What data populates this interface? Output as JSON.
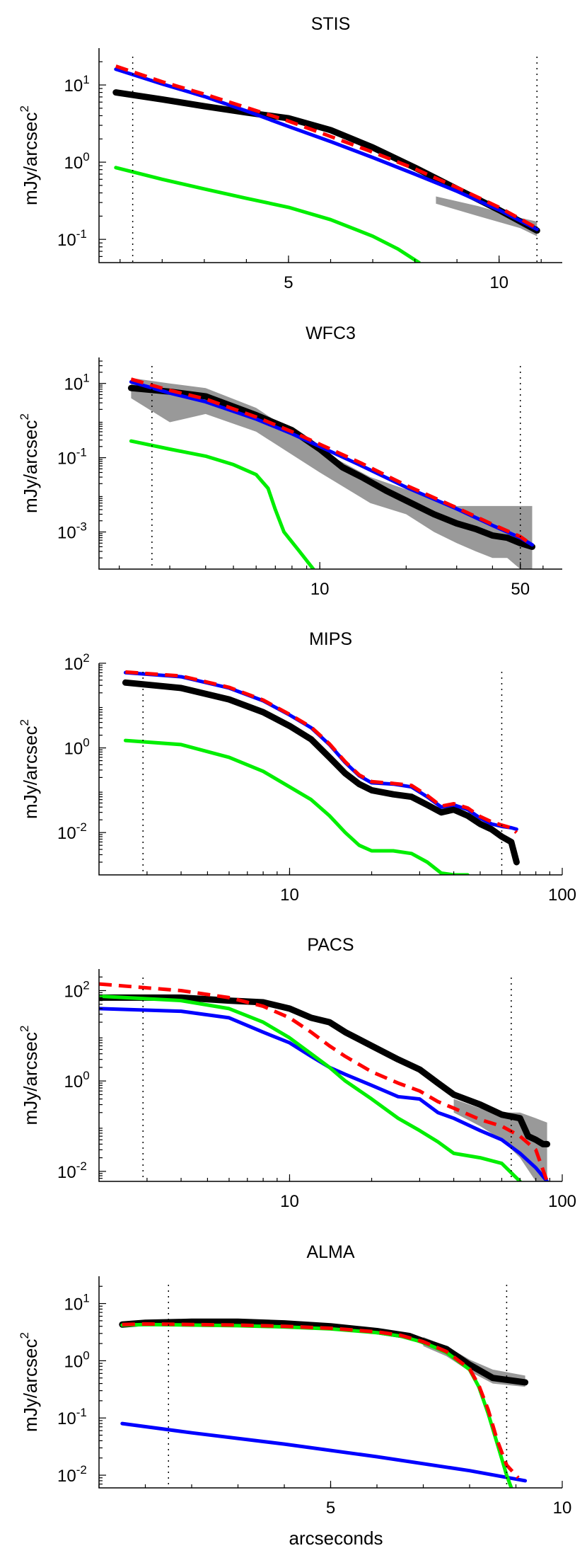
{
  "figure": {
    "xlabel": "arcseconds"
  },
  "chart_data": [
    {
      "type": "line",
      "title": "STIS",
      "xscale": "linear",
      "yscale": "log",
      "ylabel": "mJy/arcsec",
      "ylabel_sup": "2",
      "xlim": [
        0.5,
        11.5
      ],
      "ylim": [
        0.05,
        30
      ],
      "xticks": [
        5,
        10
      ],
      "xtick_labels": [
        "5",
        "10"
      ],
      "yticks": [
        0.1,
        1,
        10
      ],
      "ytick_labels": [
        "10",
        "10",
        "10"
      ],
      "ytick_sups": [
        "-1",
        "0",
        "1"
      ],
      "vlines": [
        1.3,
        10.9
      ],
      "series": [
        {
          "color": "#999999",
          "style": "band",
          "x": [
            8.5,
            9.5,
            10.5,
            10.9
          ],
          "y_low": [
            0.29,
            0.2,
            0.14,
            0.11
          ],
          "y_high": [
            0.36,
            0.27,
            0.19,
            0.17
          ]
        },
        {
          "color": "#000000",
          "style": "thick",
          "x": [
            0.9,
            2,
            3,
            4,
            5,
            6,
            7,
            8,
            9,
            10,
            10.9
          ],
          "y": [
            8,
            6.5,
            5.3,
            4.4,
            3.7,
            2.6,
            1.55,
            0.85,
            0.45,
            0.24,
            0.13
          ]
        },
        {
          "color": "#0000ff",
          "style": "solid",
          "x": [
            0.9,
            2,
            3,
            4,
            5,
            6,
            7,
            8,
            9,
            10,
            10.9
          ],
          "y": [
            16,
            10.3,
            7.1,
            4.6,
            2.9,
            1.85,
            1.15,
            0.7,
            0.42,
            0.24,
            0.135
          ]
        },
        {
          "color": "#ff0000",
          "style": "dashed",
          "x": [
            0.9,
            2,
            3,
            4,
            5,
            6,
            7,
            8,
            9,
            10,
            10.9
          ],
          "y": [
            17.5,
            11,
            7.6,
            5.1,
            3.4,
            2.15,
            1.35,
            0.82,
            0.47,
            0.26,
            0.14
          ]
        },
        {
          "color": "#00ee00",
          "style": "solid",
          "x": [
            0.9,
            2,
            3,
            4,
            5,
            6,
            7,
            7.6,
            8.1
          ],
          "y": [
            0.85,
            0.6,
            0.45,
            0.34,
            0.26,
            0.18,
            0.11,
            0.075,
            0.05
          ]
        }
      ]
    },
    {
      "type": "line",
      "title": "WFC3",
      "xscale": "log",
      "yscale": "log",
      "ylabel": "mJy/arcsec",
      "ylabel_sup": "2",
      "xlim": [
        1.7,
        70
      ],
      "ylim": [
        0.0001,
        50
      ],
      "xticks": [
        10,
        50
      ],
      "xtick_labels": [
        "10",
        "50"
      ],
      "yticks": [
        0.001,
        0.1,
        10
      ],
      "ytick_labels": [
        "10",
        "10",
        "10"
      ],
      "ytick_sups": [
        "-3",
        "-1",
        "1"
      ],
      "vlines": [
        2.6,
        50
      ],
      "series": [
        {
          "color": "#999999",
          "style": "band",
          "x": [
            2.2,
            3,
            4,
            6,
            10,
            15,
            20,
            25,
            30,
            35,
            40,
            45,
            50,
            55
          ],
          "y_low": [
            4,
            0.9,
            1.5,
            0.5,
            0.04,
            0.006,
            0.003,
            0.001,
            0.0005,
            0.0003,
            0.0002,
            0.0002,
            0.0001,
            0.0001
          ],
          "y_high": [
            14,
            10,
            7.5,
            2.2,
            0.16,
            0.03,
            0.014,
            0.008,
            0.005,
            0.005,
            0.005,
            0.005,
            0.005,
            0.005
          ]
        },
        {
          "color": "#000000",
          "style": "thick",
          "x": [
            2.2,
            3,
            4,
            6,
            8,
            10,
            12,
            14,
            17,
            20,
            25,
            30,
            35,
            40,
            45,
            50,
            55
          ],
          "y": [
            7.5,
            6,
            4.5,
            1.4,
            0.55,
            0.17,
            0.055,
            0.03,
            0.013,
            0.007,
            0.003,
            0.0017,
            0.0012,
            0.0008,
            0.0007,
            0.0005,
            0.0004
          ]
        },
        {
          "color": "#0000ff",
          "style": "solid",
          "x": [
            2.2,
            3,
            4,
            6,
            8,
            10,
            14,
            20,
            30,
            40,
            50,
            55
          ],
          "y": [
            11,
            5.5,
            3.2,
            1.1,
            0.44,
            0.2,
            0.06,
            0.016,
            0.0042,
            0.0015,
            0.0007,
            0.00045
          ]
        },
        {
          "color": "#ff0000",
          "style": "dashed",
          "x": [
            2.2,
            3,
            4,
            6,
            8,
            10,
            14,
            20,
            30,
            40,
            50,
            55
          ],
          "y": [
            13,
            6.5,
            3.8,
            1.25,
            0.5,
            0.23,
            0.07,
            0.018,
            0.0045,
            0.0016,
            0.00075,
            0.00045
          ]
        },
        {
          "color": "#00ee00",
          "style": "solid",
          "x": [
            2.2,
            3,
            4,
            5,
            6,
            6.6,
            7,
            7.5,
            8.5,
            9.5
          ],
          "y": [
            0.28,
            0.17,
            0.11,
            0.065,
            0.035,
            0.015,
            0.004,
            0.001,
            0.0003,
            0.0001
          ]
        }
      ]
    },
    {
      "type": "line",
      "title": "MIPS",
      "xscale": "log",
      "yscale": "log",
      "ylabel": "mJy/arcsec",
      "ylabel_sup": "2",
      "xlim": [
        2,
        100
      ],
      "ylim": [
        0.001,
        100
      ],
      "xticks": [
        10,
        100
      ],
      "xtick_labels": [
        "10",
        "100"
      ],
      "yticks": [
        0.01,
        1,
        100
      ],
      "ytick_labels": [
        "10",
        "10",
        "10"
      ],
      "ytick_sups": [
        "-2",
        "0",
        "2"
      ],
      "vlines": [
        2.9,
        60
      ],
      "series": [
        {
          "color": "#000000",
          "style": "thick",
          "x": [
            2.5,
            4,
            6,
            8,
            10,
            12,
            14,
            16,
            18,
            20,
            24,
            28,
            32,
            36,
            40,
            45,
            50,
            55,
            60,
            65,
            68
          ],
          "y": [
            35,
            26,
            14,
            7,
            3.3,
            1.6,
            0.6,
            0.25,
            0.14,
            0.1,
            0.08,
            0.07,
            0.045,
            0.03,
            0.035,
            0.025,
            0.016,
            0.012,
            0.008,
            0.006,
            0.002
          ]
        },
        {
          "color": "#0000ff",
          "style": "solid",
          "x": [
            2.5,
            4,
            6,
            8,
            10,
            12,
            14,
            16,
            18,
            20,
            24,
            28,
            32,
            36,
            40,
            45,
            50,
            55,
            60,
            65,
            68
          ],
          "y": [
            60,
            48,
            26,
            13,
            6,
            3,
            1.2,
            0.45,
            0.22,
            0.15,
            0.14,
            0.12,
            0.07,
            0.04,
            0.045,
            0.035,
            0.022,
            0.016,
            0.014,
            0.013,
            0.012
          ]
        },
        {
          "color": "#ff0000",
          "style": "dashed",
          "x": [
            2.5,
            4,
            6,
            8,
            10,
            12,
            14,
            16,
            18,
            20,
            24,
            28,
            32,
            36,
            40,
            45,
            50,
            55,
            60,
            65,
            68
          ],
          "y": [
            62,
            50,
            27,
            13.5,
            6.2,
            3.1,
            1.25,
            0.47,
            0.23,
            0.16,
            0.145,
            0.13,
            0.075,
            0.042,
            0.048,
            0.038,
            0.024,
            0.018,
            0.015,
            0.013,
            0.01
          ]
        },
        {
          "color": "#00ee00",
          "style": "solid",
          "x": [
            2.5,
            4,
            6,
            8,
            10,
            12,
            14,
            16,
            18,
            20,
            24,
            28,
            32,
            36,
            40,
            45
          ],
          "y": [
            1.5,
            1.2,
            0.6,
            0.28,
            0.12,
            0.06,
            0.025,
            0.01,
            0.005,
            0.0037,
            0.0037,
            0.0032,
            0.002,
            0.0011,
            0.001,
            0.001
          ]
        }
      ]
    },
    {
      "type": "line",
      "title": "PACS",
      "xscale": "log",
      "yscale": "log",
      "ylabel": "mJy/arcsec",
      "ylabel_sup": "2",
      "xlim": [
        2,
        100
      ],
      "ylim": [
        0.006,
        300
      ],
      "xticks": [
        10,
        100
      ],
      "xtick_labels": [
        "10",
        "100"
      ],
      "yticks": [
        0.01,
        1,
        100
      ],
      "ytick_labels": [
        "10",
        "10",
        "10"
      ],
      "ytick_sups": [
        "-2",
        "0",
        "2"
      ],
      "vlines": [
        2.9,
        65
      ],
      "series": [
        {
          "color": "#999999",
          "style": "band",
          "x": [
            40,
            50,
            60,
            70,
            80,
            88
          ],
          "y_low": [
            0.2,
            0.1,
            0.05,
            0.02,
            0.006,
            0.006
          ],
          "y_high": [
            0.4,
            0.25,
            0.2,
            0.2,
            0.15,
            0.12
          ]
        },
        {
          "color": "#000000",
          "style": "thick",
          "x": [
            2,
            4,
            6,
            8,
            10,
            12,
            14,
            16,
            20,
            25,
            30,
            35,
            40,
            50,
            60,
            70,
            75,
            80,
            85,
            88
          ],
          "y": [
            70,
            70,
            60,
            55,
            40,
            25,
            20,
            12,
            6,
            3,
            1.8,
            0.9,
            0.5,
            0.3,
            0.18,
            0.15,
            0.06,
            0.05,
            0.04,
            0.04
          ]
        },
        {
          "color": "#0000ff",
          "style": "solid",
          "x": [
            2,
            4,
            6,
            8,
            10,
            12,
            14,
            16,
            20,
            25,
            30,
            35,
            40,
            50,
            60,
            70,
            80,
            88
          ],
          "y": [
            40,
            35,
            25,
            12,
            7,
            3.5,
            2,
            1.4,
            0.8,
            0.45,
            0.4,
            0.2,
            0.15,
            0.08,
            0.05,
            0.025,
            0.012,
            0.006
          ]
        },
        {
          "color": "#ff0000",
          "style": "dashed",
          "x": [
            2,
            4,
            6,
            8,
            10,
            12,
            14,
            16,
            20,
            25,
            30,
            35,
            40,
            50,
            60,
            70,
            80,
            88
          ],
          "y": [
            140,
            100,
            70,
            45,
            25,
            12,
            6,
            3.5,
            1.6,
            0.9,
            0.6,
            0.35,
            0.25,
            0.14,
            0.1,
            0.06,
            0.03,
            0.006
          ]
        },
        {
          "color": "#00ee00",
          "style": "solid",
          "x": [
            2,
            4,
            6,
            8,
            10,
            12,
            14,
            16,
            20,
            25,
            30,
            35,
            40,
            50,
            60,
            70
          ],
          "y": [
            75,
            60,
            40,
            20,
            9,
            4,
            2,
            1,
            0.4,
            0.15,
            0.08,
            0.045,
            0.025,
            0.02,
            0.015,
            0.006
          ]
        }
      ]
    },
    {
      "type": "line",
      "title": "ALMA",
      "xscale": "linear",
      "yscale": "log",
      "ylabel": "mJy/arcsec",
      "ylabel_sup": "2",
      "xlabel": "arcseconds",
      "xlim": [
        0,
        10
      ],
      "ylim": [
        0.006,
        30
      ],
      "xticks": [
        5,
        10
      ],
      "xtick_labels": [
        "5",
        "10"
      ],
      "yticks": [
        0.01,
        0.1,
        1,
        10
      ],
      "ytick_labels": [
        "10",
        "10",
        "10",
        "10"
      ],
      "ytick_sups": [
        "-2",
        "-1",
        "0",
        "1"
      ],
      "vlines": [
        1.5,
        8.8
      ],
      "series": [
        {
          "color": "#999999",
          "style": "band",
          "x": [
            7,
            7.5,
            8,
            8.5,
            9.2
          ],
          "y_low": [
            1.8,
            1.2,
            0.65,
            0.4,
            0.35
          ],
          "y_high": [
            2.6,
            1.8,
            1.05,
            0.7,
            0.55
          ]
        },
        {
          "color": "#000000",
          "style": "thick",
          "x": [
            0.5,
            1,
            2,
            3,
            4,
            5,
            6,
            6.7,
            7,
            7.5,
            8,
            8.5,
            9.2
          ],
          "y": [
            4.3,
            4.6,
            4.8,
            4.8,
            4.5,
            4,
            3.3,
            2.7,
            2.2,
            1.6,
            0.85,
            0.5,
            0.42
          ]
        },
        {
          "color": "#0000ff",
          "style": "solid",
          "x": [
            0.5,
            2,
            4,
            6,
            8,
            9.2
          ],
          "y": [
            0.08,
            0.055,
            0.035,
            0.021,
            0.012,
            0.008
          ]
        },
        {
          "color": "#00ee00",
          "style": "solid",
          "x": [
            0.5,
            1,
            2,
            3,
            4,
            5,
            6,
            6.5,
            7,
            7.5,
            8,
            8.2,
            8.4,
            8.6,
            8.8,
            8.9
          ],
          "y": [
            4.2,
            4.3,
            4.2,
            4.1,
            3.9,
            3.6,
            3.1,
            2.7,
            2.1,
            1.4,
            0.7,
            0.35,
            0.12,
            0.035,
            0.01,
            0.006
          ]
        },
        {
          "color": "#ff0000",
          "style": "dashed",
          "x": [
            0.5,
            1,
            2,
            3,
            4,
            5,
            6,
            6.5,
            7,
            7.5,
            8,
            8.2,
            8.4,
            8.6,
            8.8,
            9.05
          ],
          "y": [
            4.3,
            4.4,
            4.3,
            4.2,
            4,
            3.7,
            3.2,
            2.8,
            2.15,
            1.45,
            0.72,
            0.37,
            0.14,
            0.04,
            0.015,
            0.009
          ]
        }
      ]
    }
  ]
}
